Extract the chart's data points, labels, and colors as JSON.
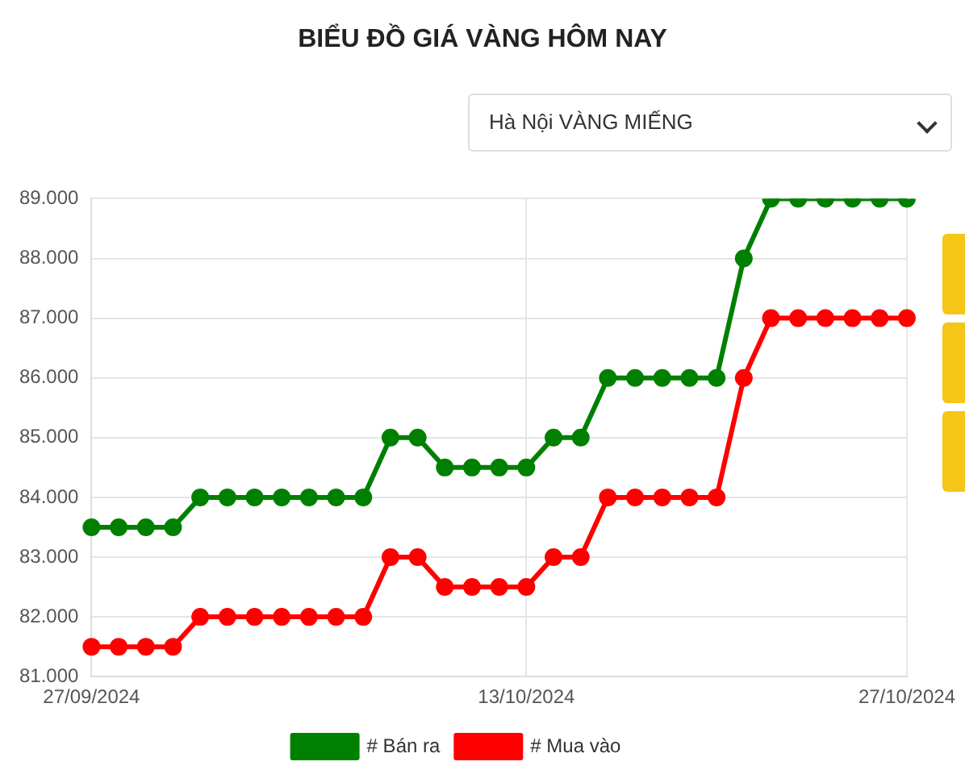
{
  "chart_data": {
    "type": "line",
    "title": "BIỂU ĐỒ GIÁ VÀNG HÔM NAY",
    "annotations": [
      "Hà Nội VÀNG MIẾNG"
    ],
    "categories": [
      "27/09/2024",
      null,
      null,
      null,
      null,
      null,
      null,
      null,
      null,
      null,
      null,
      null,
      null,
      null,
      null,
      null,
      "13/10/2024",
      null,
      null,
      null,
      null,
      null,
      null,
      null,
      null,
      null,
      null,
      null,
      null,
      null,
      "27/10/2024"
    ],
    "series": [
      {
        "name": "# Bán ra",
        "color": "#008000",
        "values": [
          83500,
          83500,
          83500,
          83500,
          84000,
          84000,
          84000,
          84000,
          84000,
          84000,
          84000,
          85000,
          85000,
          84500,
          84500,
          84500,
          84500,
          85000,
          85000,
          86000,
          86000,
          86000,
          86000,
          86000,
          88000,
          89000,
          89000,
          89000,
          89000,
          89000,
          89000
        ]
      },
      {
        "name": "# Mua vào",
        "color": "#ff0000",
        "values": [
          81500,
          81500,
          81500,
          81500,
          82000,
          82000,
          82000,
          82000,
          82000,
          82000,
          82000,
          83000,
          83000,
          82500,
          82500,
          82500,
          82500,
          83000,
          83000,
          84000,
          84000,
          84000,
          84000,
          84000,
          86000,
          87000,
          87000,
          87000,
          87000,
          87000,
          87000
        ]
      }
    ],
    "ylim": [
      81000,
      89000
    ],
    "yticks": [
      {
        "value": 81000,
        "label": "81.000"
      },
      {
        "value": 82000,
        "label": "82.000"
      },
      {
        "value": 83000,
        "label": "83.000"
      },
      {
        "value": 84000,
        "label": "84.000"
      },
      {
        "value": 85000,
        "label": "85.000"
      },
      {
        "value": 86000,
        "label": "86.000"
      },
      {
        "value": 87000,
        "label": "87.000"
      },
      {
        "value": 88000,
        "label": "88.000"
      },
      {
        "value": 89000,
        "label": "89.000"
      }
    ],
    "grid": true,
    "legend": "bottom",
    "marker": "circle",
    "line_style": "solid"
  }
}
